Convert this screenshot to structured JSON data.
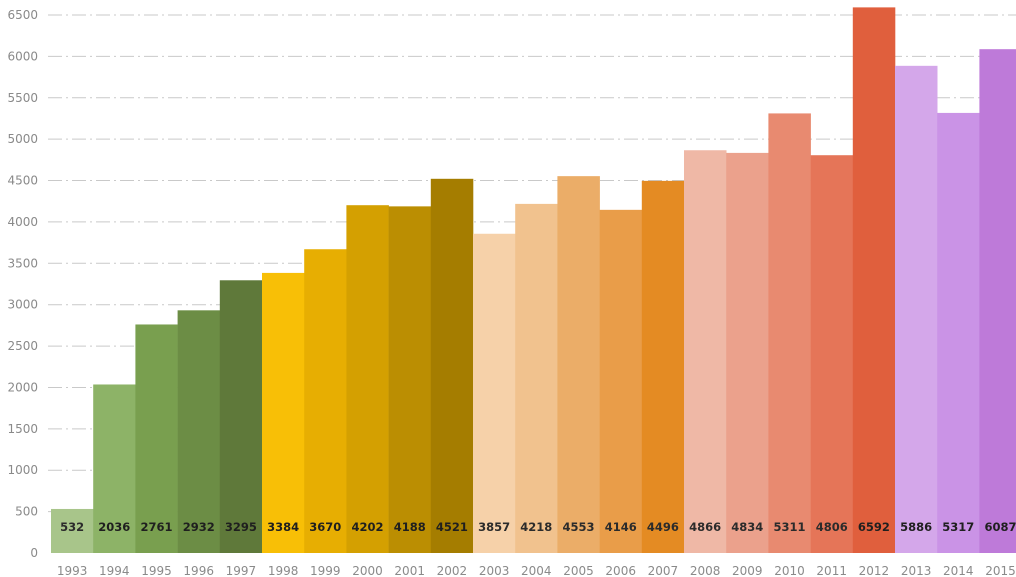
{
  "chart_data": {
    "type": "bar",
    "title": "",
    "xlabel": "",
    "ylabel": "",
    "ylim": [
      0,
      6500
    ],
    "yticks": [
      0,
      500,
      1000,
      1500,
      2000,
      2500,
      3000,
      3500,
      4000,
      4500,
      5000,
      5500,
      6000,
      6500
    ],
    "grid": true,
    "data_labels": true,
    "categories": [
      "1993",
      "1994",
      "1995",
      "1996",
      "1997",
      "1998",
      "1999",
      "2000",
      "2001",
      "2002",
      "2003",
      "2004",
      "2005",
      "2006",
      "2007",
      "2008",
      "2009",
      "2010",
      "2011",
      "2012",
      "2013",
      "2014",
      "2015"
    ],
    "values": [
      532,
      2036,
      2761,
      2932,
      3295,
      3384,
      3670,
      4202,
      4188,
      4521,
      3857,
      4218,
      4553,
      4146,
      4496,
      4866,
      4834,
      5311,
      4806,
      6592,
      5886,
      5317,
      6087
    ],
    "colors": [
      "#a8c58a",
      "#8db367",
      "#799f4f",
      "#6c8d45",
      "#5f793a",
      "#f8bf06",
      "#e7ae02",
      "#d4a001",
      "#bb8e02",
      "#a57d00",
      "#f6d1a9",
      "#f1c28e",
      "#ebad68",
      "#e99d49",
      "#e48b23",
      "#efb8a6",
      "#eba18c",
      "#e88a70",
      "#e57558",
      "#e05f3d",
      "#d4a7ea",
      "#ca93e6",
      "#be7ad9"
    ],
    "label_colors": [
      "#2b2b2b",
      "#1f1f1f",
      "#1f1f1f",
      "#1f1f1f",
      "#1f1f1f",
      "#1f1f1f",
      "#1f1f1f",
      "#1f1f1f",
      "#1f1f1f",
      "#1f1f1f",
      "#2b2b2b",
      "#2b2b2b",
      "#2b2b2b",
      "#2b2b2b",
      "#2b2b2b",
      "#2b2b2b",
      "#2b2b2b",
      "#2b2b2b",
      "#2b2b2b",
      "#1f1f1f",
      "#1f1f1f",
      "#1f1f1f",
      "#1f1f1f"
    ]
  }
}
